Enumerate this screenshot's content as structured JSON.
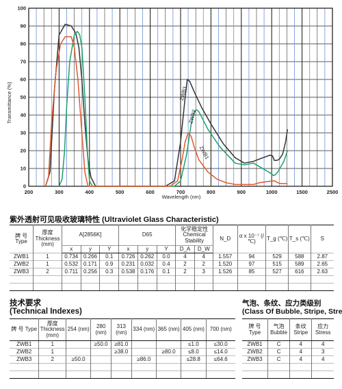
{
  "chart_data": {
    "type": "line",
    "ylabel": "Transmittance (%)",
    "xlabel": "Wavelength (nm)",
    "ylim": [
      0,
      100
    ],
    "yticks": [
      "0",
      "10",
      "20",
      "30",
      "40",
      "50",
      "60",
      "70",
      "80",
      "90",
      "100"
    ],
    "xticks": [
      "200",
      "300",
      "400",
      "500",
      "600",
      "700",
      "800",
      "900",
      "1000",
      "1500",
      "2500"
    ],
    "grid": true,
    "series": [
      {
        "name": "ZWB3",
        "color": "#333333",
        "points": [
          [
            255,
            0
          ],
          [
            270,
            8
          ],
          [
            285,
            55
          ],
          [
            300,
            85
          ],
          [
            320,
            91
          ],
          [
            340,
            90
          ],
          [
            355,
            86
          ],
          [
            365,
            78
          ],
          [
            375,
            60
          ],
          [
            385,
            35
          ],
          [
            395,
            15
          ],
          [
            405,
            5
          ],
          [
            420,
            0
          ],
          [
            650,
            0
          ],
          [
            680,
            3
          ],
          [
            700,
            25
          ],
          [
            715,
            50
          ],
          [
            722,
            60
          ],
          [
            730,
            59
          ],
          [
            745,
            53
          ],
          [
            770,
            44
          ],
          [
            800,
            35
          ],
          [
            840,
            24
          ],
          [
            880,
            16
          ],
          [
            910,
            13
          ],
          [
            940,
            14
          ],
          [
            970,
            16
          ],
          [
            995,
            17.5
          ],
          [
            1015,
            17
          ],
          [
            1045,
            14.5
          ],
          [
            1075,
            14.5
          ],
          [
            1120,
            15
          ],
          [
            1180,
            18
          ],
          [
            1230,
            25
          ],
          [
            1260,
            32
          ]
        ]
      },
      {
        "name": "ZWB2",
        "color": "#1aa06a",
        "points": [
          [
            300,
            0
          ],
          [
            310,
            4
          ],
          [
            318,
            20
          ],
          [
            325,
            45
          ],
          [
            335,
            70
          ],
          [
            350,
            85
          ],
          [
            360,
            87
          ],
          [
            368,
            85
          ],
          [
            375,
            78
          ],
          [
            385,
            50
          ],
          [
            393,
            20
          ],
          [
            400,
            3
          ],
          [
            410,
            0
          ],
          [
            680,
            0
          ],
          [
            700,
            3
          ],
          [
            720,
            18
          ],
          [
            735,
            35
          ],
          [
            745,
            42
          ],
          [
            752,
            43
          ],
          [
            760,
            42
          ],
          [
            790,
            32
          ],
          [
            830,
            22
          ],
          [
            880,
            13
          ],
          [
            910,
            12
          ],
          [
            940,
            13
          ],
          [
            970,
            10
          ],
          [
            1000,
            7
          ],
          [
            1030,
            6
          ],
          [
            1060,
            6.5
          ],
          [
            1100,
            8
          ],
          [
            1150,
            11
          ],
          [
            1200,
            14
          ],
          [
            1240,
            18
          ],
          [
            1260,
            20
          ]
        ]
      },
      {
        "name": "ZWB1",
        "color": "#e0582a",
        "points": [
          [
            255,
            0
          ],
          [
            265,
            5
          ],
          [
            275,
            35
          ],
          [
            290,
            65
          ],
          [
            305,
            80
          ],
          [
            320,
            84
          ],
          [
            340,
            84
          ],
          [
            350,
            78
          ],
          [
            362,
            60
          ],
          [
            375,
            30
          ],
          [
            385,
            8
          ],
          [
            395,
            0
          ],
          [
            665,
            0
          ],
          [
            690,
            3
          ],
          [
            705,
            15
          ],
          [
            715,
            25
          ],
          [
            725,
            30
          ],
          [
            735,
            28
          ],
          [
            745,
            22
          ],
          [
            760,
            15
          ],
          [
            790,
            8
          ],
          [
            820,
            4
          ],
          [
            850,
            2
          ],
          [
            880,
            1
          ],
          [
            940,
            1
          ],
          [
            960,
            2
          ],
          [
            1000,
            3
          ],
          [
            1050,
            3
          ],
          [
            1100,
            2
          ],
          [
            1150,
            1.5
          ],
          [
            1200,
            1.5
          ],
          [
            1260,
            1.5
          ]
        ]
      }
    ],
    "curve_labels": [
      "ZWB3",
      "ZWB2",
      "ZWB1"
    ]
  },
  "table1": {
    "title": "紫外透射可见吸收玻璃特性 (Ultraviolet Glass Characteristic)",
    "h_type": "牌 号 Type",
    "h_thickness": "厚度 Thickness (mm)",
    "h_a": "A[2856K]",
    "h_d65": "D65",
    "h_chem": "化学稳定性 Chemical Stability",
    "h_nd": "N_D",
    "h_alpha": "α x 10⁻⁷ (/℃)",
    "h_tg": "T_g (℃)",
    "h_ts": "T_s (℃)",
    "h_s": "S",
    "sub_x": "x",
    "sub_y": "y",
    "sub_Y": "Y",
    "sub_da": "D_A",
    "sub_dw": "D_W",
    "rows": [
      [
        "ZWB1",
        "1",
        "0.734",
        "0.266",
        "0.1",
        "0.726",
        "0.262",
        "0.0",
        "4",
        "4",
        "1.557",
        "94",
        "529",
        "588",
        "2.87"
      ],
      [
        "ZWB2",
        "1",
        "0.532",
        "0.171",
        "0.9",
        "0.231",
        "0.032",
        "0.4",
        "2",
        "2",
        "1.520",
        "97",
        "515",
        "589",
        "2.65"
      ],
      [
        "ZWB3",
        "2",
        "0.711",
        "0.256",
        "0.3",
        "0.538",
        "0.176",
        "0.1",
        "2",
        "3",
        "1.526",
        "85",
        "527",
        "616",
        "2.63"
      ]
    ]
  },
  "table2": {
    "title_cn": "技术要求",
    "title_en": "(Technical Indexes)",
    "headers": [
      "牌 号 Type",
      "厚度 Thickness (mm)",
      "254 (nm)",
      "280 (nm)",
      "313 (nm)",
      "334 (nm)",
      "365 (nm)",
      "405 (nm)",
      "700 (nm)"
    ],
    "rows": [
      [
        "ZWB1",
        "1",
        "",
        "≥50.0",
        "≥81.0",
        "",
        "",
        "≤1.0",
        "≤30.0"
      ],
      [
        "ZWB2",
        "1",
        "",
        "",
        "≥38.0",
        "",
        "≥80.0",
        "≤8.0",
        "≤14.0"
      ],
      [
        "ZWB3",
        "2",
        "≥50.0",
        "",
        "",
        "≥86.0",
        "",
        "≤28.8",
        "≤64.6"
      ]
    ]
  },
  "table3": {
    "title_cn": "气泡、条纹、应力类级别",
    "title_en": "(Class Of Bubble, Stripe, Stress)",
    "headers": [
      "牌 号 Type",
      "气泡 Bubble",
      "条纹 Stripe",
      "应力 Stress"
    ],
    "rows": [
      [
        "ZWB1",
        "C",
        "4",
        "4"
      ],
      [
        "ZWB2",
        "C",
        "4",
        "3"
      ],
      [
        "ZWB3",
        "C",
        "4",
        "4"
      ]
    ]
  }
}
